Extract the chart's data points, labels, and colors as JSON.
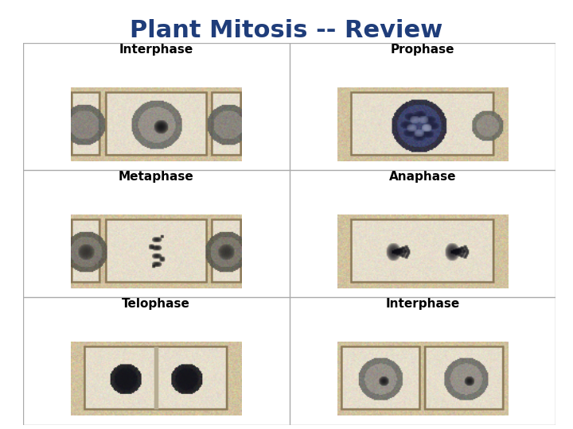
{
  "title": "Plant Mitosis -- Review",
  "title_color": "#1f3d7a",
  "title_fontsize": 22,
  "background_color": "#ffffff",
  "grid_line_color": "#aaaaaa",
  "label_fontsize": 11,
  "label_fontweight": "bold",
  "labels": [
    [
      "Interphase",
      "Prophase"
    ],
    [
      "Metaphase",
      "Anaphase"
    ],
    [
      "Telophase",
      "Interphase"
    ]
  ],
  "n_rows": 3,
  "n_cols": 2
}
